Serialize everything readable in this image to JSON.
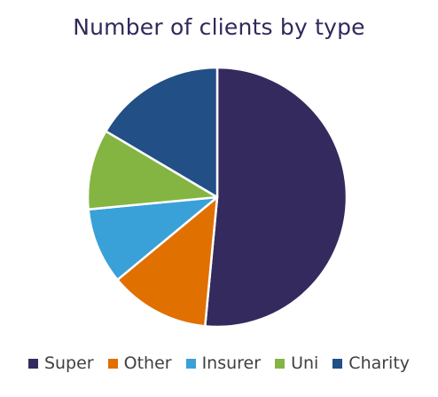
{
  "chart_data": {
    "type": "pie",
    "title": "Number of clients by type",
    "legend_position": "bottom",
    "start_angle_deg": 0,
    "direction": "clockwise",
    "categories": [
      "Super",
      "Other",
      "Insurer",
      "Uni",
      "Charity"
    ],
    "values": [
      51.5,
      12.5,
      9.5,
      10,
      16.5
    ],
    "colors": [
      "#352a5e",
      "#e07000",
      "#3aa0d8",
      "#84b542",
      "#214f86"
    ],
    "slice_border_color": "#ffffff"
  }
}
